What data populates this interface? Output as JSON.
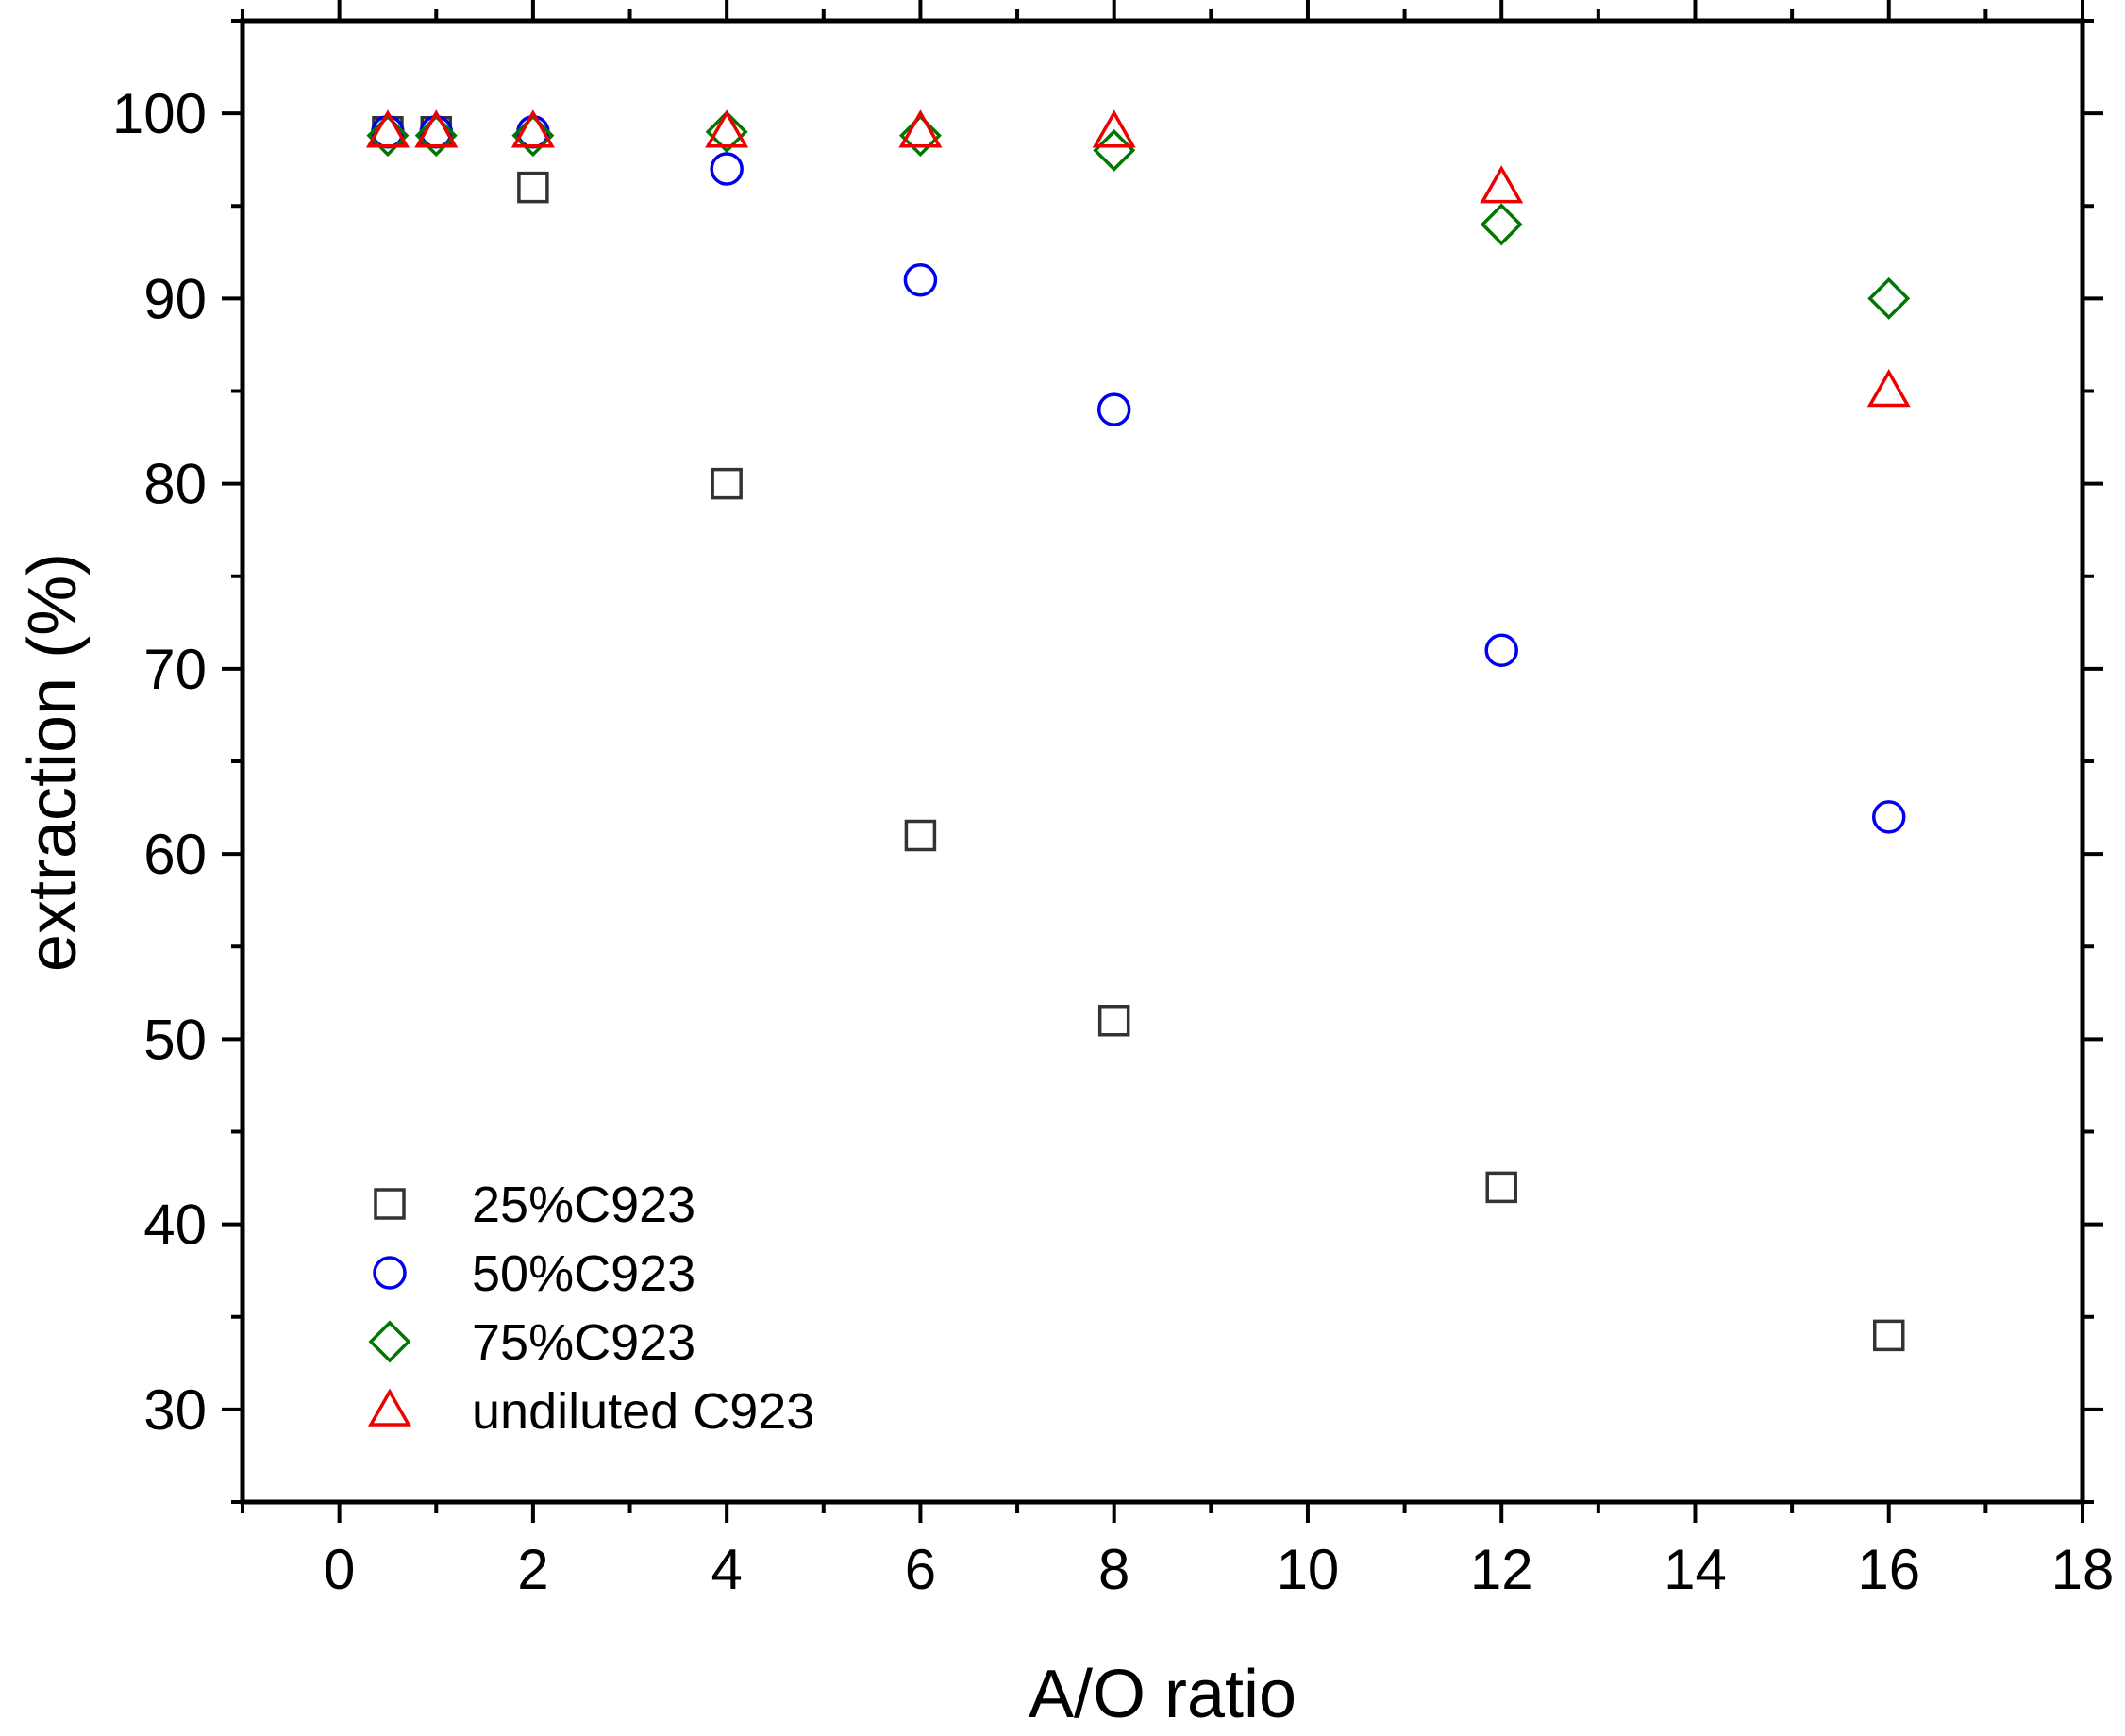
{
  "chart_data": {
    "type": "scatter",
    "title": "",
    "xlabel": "A/O ratio",
    "ylabel": "extraction (%)",
    "xlim": [
      -1,
      18
    ],
    "ylim": [
      25,
      105
    ],
    "x_ticks": [
      0,
      2,
      4,
      6,
      8,
      10,
      12,
      14,
      16,
      18
    ],
    "y_ticks": [
      30,
      40,
      50,
      60,
      70,
      80,
      90,
      100
    ],
    "legend_position": "bottom-left",
    "series": [
      {
        "name": "25%C923",
        "marker": "square",
        "color": "#333333",
        "x": [
          0.5,
          1,
          2,
          4,
          6,
          8,
          12,
          16
        ],
        "y": [
          99,
          99,
          96,
          80,
          61,
          51,
          42,
          34
        ]
      },
      {
        "name": "50%C923",
        "marker": "circle",
        "color": "#0000ee",
        "x": [
          0.5,
          1,
          2,
          4,
          6,
          8,
          12,
          16
        ],
        "y": [
          99,
          99,
          99,
          97,
          91,
          84,
          71,
          62
        ]
      },
      {
        "name": "75%C923",
        "marker": "diamond",
        "color": "#007700",
        "x": [
          0.5,
          1,
          2,
          4,
          6,
          8,
          12,
          16
        ],
        "y": [
          98.8,
          98.8,
          98.8,
          99,
          98.8,
          98,
          94,
          90
        ]
      },
      {
        "name": "undiluted C923",
        "marker": "triangle",
        "color": "#ee0000",
        "x": [
          0.5,
          1,
          2,
          4,
          6,
          8,
          12,
          16
        ],
        "y": [
          99,
          99,
          99,
          99,
          99,
          99,
          96,
          85
        ]
      }
    ]
  }
}
